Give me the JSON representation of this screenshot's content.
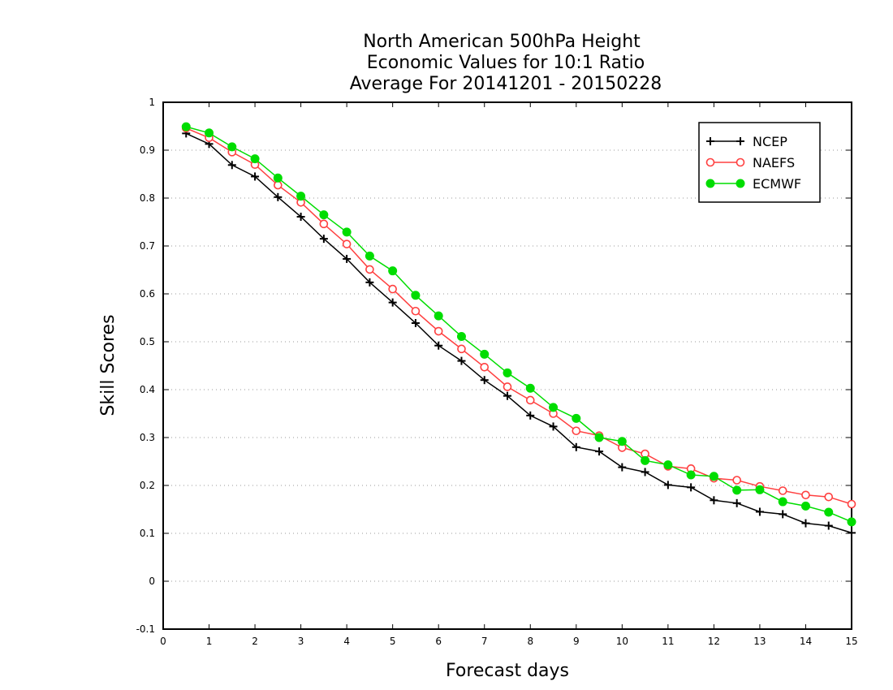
{
  "chart_data": {
    "type": "line",
    "title_lines": [
      "North American 500hPa Height",
      "Economic Values for 10:1 Ratio",
      "Average For 20141201 - 20150228"
    ],
    "xlabel": "Forecast days",
    "ylabel": "Skill Scores",
    "xlim": [
      0,
      15
    ],
    "ylim": [
      -0.1,
      1
    ],
    "x_ticks": [
      0,
      1,
      2,
      3,
      4,
      5,
      6,
      7,
      8,
      9,
      10,
      11,
      12,
      13,
      14,
      15
    ],
    "x_tick_labels": [
      "0",
      "1",
      "2",
      "3",
      "4",
      "5",
      "6",
      "7",
      "8",
      "9",
      "10",
      "11",
      "12",
      "13",
      "14",
      "15"
    ],
    "y_ticks": [
      -0.1,
      0,
      0.1,
      0.2,
      0.3,
      0.4,
      0.5,
      0.6,
      0.7,
      0.8,
      0.9,
      1
    ],
    "y_tick_labels": [
      "-0.1",
      "0",
      "0.1",
      "0.2",
      "0.3",
      "0.4",
      "0.5",
      "0.6",
      "0.7",
      "0.8",
      "0.9",
      "1"
    ],
    "grid": "horizontal dotted",
    "legend_position": "top-right",
    "x": [
      0.5,
      1,
      1.5,
      2,
      2.5,
      3,
      3.5,
      4,
      4.5,
      5,
      5.5,
      6,
      6.5,
      7,
      7.5,
      8,
      8.5,
      9,
      9.5,
      10,
      10.5,
      11,
      11.5,
      12,
      12.5,
      13,
      13.5,
      14,
      14.5,
      15
    ],
    "series": [
      {
        "name": "NCEP",
        "color": "#000000",
        "marker": "plus",
        "values": [
          0.935,
          0.913,
          0.869,
          0.845,
          0.802,
          0.761,
          0.715,
          0.673,
          0.624,
          0.582,
          0.539,
          0.492,
          0.46,
          0.42,
          0.387,
          0.346,
          0.323,
          0.28,
          0.271,
          0.238,
          0.228,
          0.201,
          0.196,
          0.169,
          0.163,
          0.145,
          0.14,
          0.121,
          0.116,
          0.101
        ]
      },
      {
        "name": "NAEFS",
        "color": "#ff4040",
        "marker": "open-circle",
        "values": [
          0.946,
          0.926,
          0.896,
          0.87,
          0.827,
          0.791,
          0.746,
          0.704,
          0.651,
          0.61,
          0.564,
          0.522,
          0.485,
          0.447,
          0.406,
          0.378,
          0.35,
          0.314,
          0.304,
          0.279,
          0.266,
          0.24,
          0.235,
          0.215,
          0.211,
          0.198,
          0.189,
          0.18,
          0.176,
          0.161
        ]
      },
      {
        "name": "ECMWF",
        "color": "#00dd00",
        "marker": "filled-circle",
        "values": [
          0.949,
          0.936,
          0.907,
          0.882,
          0.842,
          0.804,
          0.765,
          0.729,
          0.679,
          0.648,
          0.597,
          0.554,
          0.511,
          0.474,
          0.435,
          0.403,
          0.363,
          0.34,
          0.3,
          0.292,
          0.252,
          0.243,
          0.222,
          0.219,
          0.19,
          0.191,
          0.166,
          0.157,
          0.144,
          0.124
        ]
      }
    ]
  }
}
